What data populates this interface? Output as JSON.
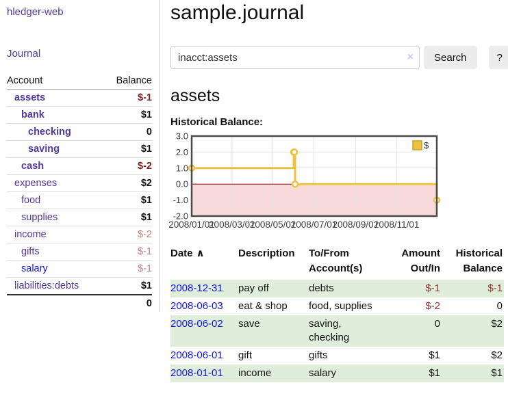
{
  "colors": {
    "link_visited": "#5336a2",
    "link_new": "#1414dd",
    "negative_dark": "#7f1c1c",
    "negative_light": "#bd7f7f",
    "negative_table": "#8f3434",
    "row_stripe_green": "#dfeeda",
    "chart_line": "#edc240",
    "chart_negative_region": "#f9dada",
    "chart_zero_line": "#8b0000",
    "button_bg": "#ececec"
  },
  "sidebar": {
    "app_title": "hledger-web",
    "nav_journal": "Journal",
    "accounts_table": {
      "header": {
        "account": "Account",
        "balance": "Balance"
      },
      "rows": [
        {
          "name": "assets",
          "balance": "$-1",
          "depth": 1,
          "bold": true,
          "balance_style": "neg-dark",
          "link_style": "visited"
        },
        {
          "name": "bank",
          "balance": "$1",
          "depth": 2,
          "bold": true,
          "balance_style": "pos",
          "link_style": "visited"
        },
        {
          "name": "checking",
          "balance": "0",
          "depth": 3,
          "bold": true,
          "balance_style": "pos",
          "link_style": "visited"
        },
        {
          "name": "saving",
          "balance": "$1",
          "depth": 3,
          "bold": true,
          "balance_style": "pos",
          "link_style": "visited"
        },
        {
          "name": "cash",
          "balance": "$-2",
          "depth": 2,
          "bold": true,
          "balance_style": "neg-dark",
          "link_style": "visited"
        },
        {
          "name": "expenses",
          "balance": "$2",
          "depth": 1,
          "bold": false,
          "balance_style": "pos",
          "link_style": "visited"
        },
        {
          "name": "food",
          "balance": "$1",
          "depth": 2,
          "bold": false,
          "balance_style": "pos",
          "link_style": "visited"
        },
        {
          "name": "supplies",
          "balance": "$1",
          "depth": 2,
          "bold": false,
          "balance_style": "pos",
          "link_style": "visited"
        },
        {
          "name": "income",
          "balance": "$-2",
          "depth": 1,
          "bold": false,
          "balance_style": "neg-light",
          "link_style": "visited"
        },
        {
          "name": "gifts",
          "balance": "$-1",
          "depth": 2,
          "bold": false,
          "balance_style": "neg-light",
          "link_style": "visited"
        },
        {
          "name": "salary",
          "balance": "$-1",
          "depth": 2,
          "bold": false,
          "balance_style": "neg-light",
          "link_style": "new"
        },
        {
          "name": "liabilities:debts",
          "balance": "$1",
          "depth": 1,
          "bold": false,
          "balance_style": "pos",
          "link_style": "visited"
        }
      ],
      "total": "0"
    }
  },
  "header": {
    "title": "sample.journal"
  },
  "search": {
    "value": "inacct:assets",
    "clear_icon": "×",
    "button_label": "Search",
    "help_label": "?"
  },
  "account_page": {
    "heading": "assets",
    "chart_title": "Historical Balance:"
  },
  "chart_data": {
    "type": "line",
    "step": true,
    "title": "Historical Balance of assets",
    "x_domain": [
      "2008-01-01",
      "2008-12-31"
    ],
    "x_ticks": [
      "2008/01/01",
      "2008/03/01",
      "2008/05/01",
      "2008/07/01",
      "2008/09/01",
      "2008/11/01"
    ],
    "y_ticks": [
      "3.0",
      "2.0",
      "1.0",
      "0.0",
      "-1.0",
      "-2.0"
    ],
    "ylim": [
      -2,
      3
    ],
    "grid": true,
    "legend": {
      "label": "$",
      "position": "top-right"
    },
    "series": [
      {
        "name": "$",
        "color": "#edc240",
        "points": [
          [
            "2008-01-01",
            1
          ],
          [
            "2008-06-01",
            2
          ],
          [
            "2008-06-02",
            2
          ],
          [
            "2008-06-03",
            0
          ],
          [
            "2008-12-31",
            -1
          ]
        ]
      }
    ]
  },
  "register_table": {
    "headers": {
      "date": "Date",
      "sort_indicator": "∧",
      "description": "Description",
      "accounts": "To/From Account(s)",
      "amount": "Amount Out/In",
      "balance": "Historical Balance"
    },
    "rows": [
      {
        "date": "2008-12-31",
        "description": "pay off",
        "accounts": "debts",
        "amount": "$-1",
        "amount_negative": true,
        "balance": "$-1",
        "balance_negative": true
      },
      {
        "date": "2008-06-03",
        "description": "eat & shop",
        "accounts": "food, supplies",
        "amount": "$-2",
        "amount_negative": true,
        "balance": "0",
        "balance_negative": false
      },
      {
        "date": "2008-06-02",
        "description": "save",
        "accounts": "saving, checking",
        "amount": "0",
        "amount_negative": false,
        "balance": "$2",
        "balance_negative": false
      },
      {
        "date": "2008-06-01",
        "description": "gift",
        "accounts": "gifts",
        "amount": "$1",
        "amount_negative": false,
        "balance": "$2",
        "balance_negative": false
      },
      {
        "date": "2008-01-01",
        "description": "income",
        "accounts": "salary",
        "amount": "$1",
        "amount_negative": false,
        "balance": "$1",
        "balance_negative": false
      }
    ]
  }
}
